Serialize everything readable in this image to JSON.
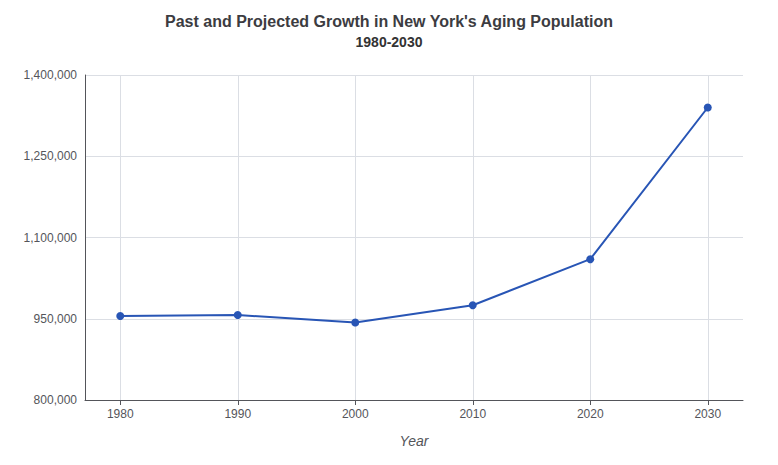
{
  "chart_data": {
    "type": "line",
    "title": "Past and Projected Growth in New York's Aging Population",
    "subtitle": "1980-2030",
    "xlabel": "Year",
    "x": [
      1980,
      1990,
      2000,
      2010,
      2020,
      2030
    ],
    "values": [
      955000,
      957000,
      943000,
      975000,
      1060000,
      1340000
    ],
    "color": "#2855b5",
    "marker": "circle",
    "xlim": [
      1977,
      2033
    ],
    "xticks": [
      1980,
      1990,
      2000,
      2010,
      2020,
      2030
    ],
    "ylim": [
      800000,
      1400000
    ],
    "yticks": [
      {
        "value": 800000,
        "label": "800,000"
      },
      {
        "value": 950000,
        "label": "950,000"
      },
      {
        "value": 1100000,
        "label": "1,100,000"
      },
      {
        "value": 1250000,
        "label": "1,250,000"
      },
      {
        "value": 1400000,
        "label": "1,400,000"
      }
    ],
    "grid": true
  }
}
